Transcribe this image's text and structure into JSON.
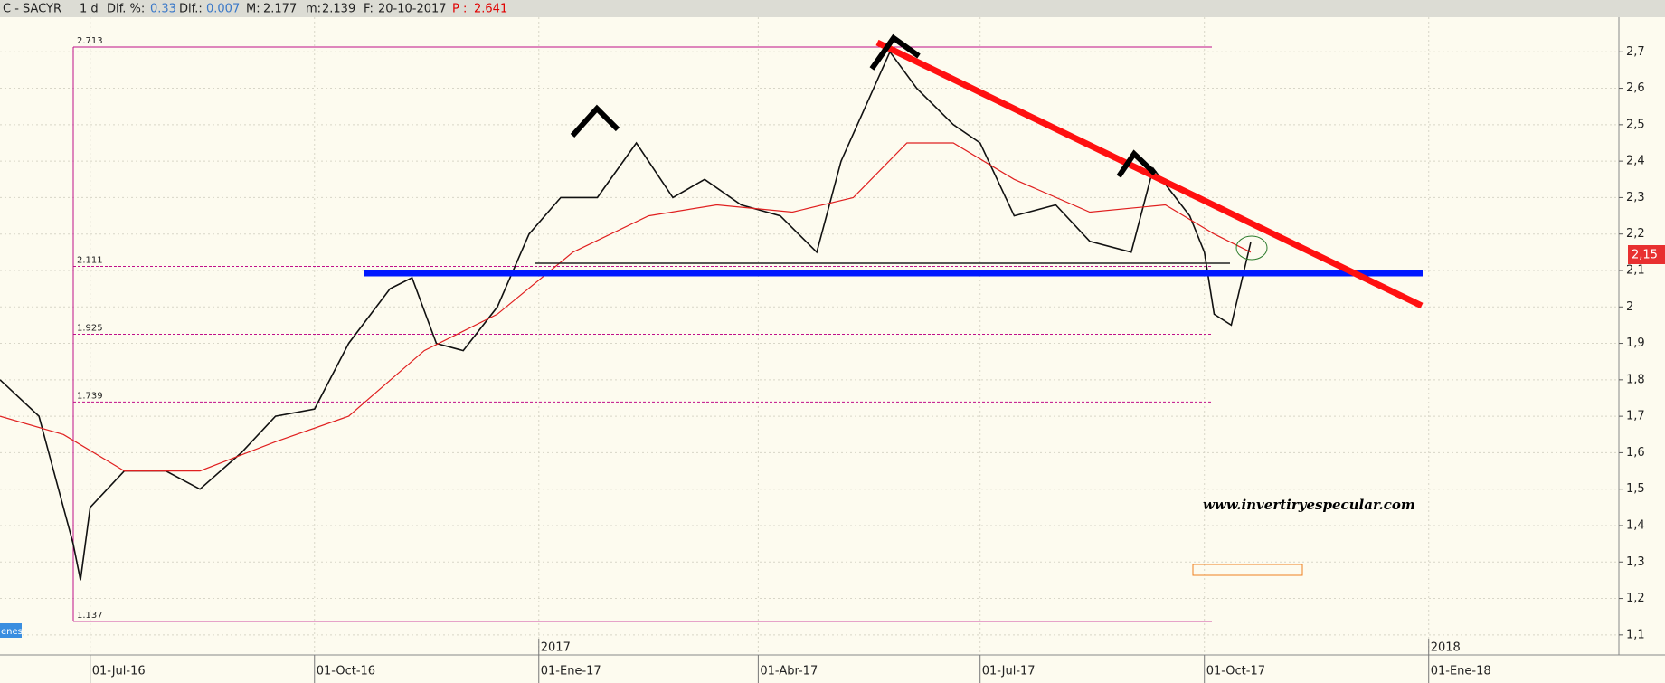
{
  "chart_data": {
    "type": "line",
    "header": {
      "symbol": "C - SACYR",
      "interval": "1 d",
      "dif_pct_label": "Dif. %:",
      "dif_pct": 0.33,
      "dif_label": "Dif.:",
      "dif": 0.007,
      "max_label": "M:",
      "max": 2.177,
      "min_label": "m:",
      "min": 2.139,
      "date_label": "F:",
      "date": "20-10-2017",
      "p_label": "P :",
      "p": 2.641
    },
    "watermark": "www.invertiryespecular.com",
    "last_price_label": "2,15",
    "corner_label": "enes",
    "xlim": [
      "2016-05-25",
      "2018-03-20"
    ],
    "xticks": [
      {
        "value": "2016-07-01",
        "label": "01-Jul-16"
      },
      {
        "value": "2016-10-01",
        "label": "01-Oct-16"
      },
      {
        "value": "2017-01-01",
        "label": "01-Ene-17"
      },
      {
        "value": "2017-04-01",
        "label": "01-Abr-17"
      },
      {
        "value": "2017-07-01",
        "label": "01-Jul-17"
      },
      {
        "value": "2017-10-01",
        "label": "01-Oct-17"
      },
      {
        "value": "2018-01-01",
        "label": "01-Ene-18"
      }
    ],
    "year_marks": [
      {
        "value": "2017-01-01",
        "label": "2017"
      },
      {
        "value": "2018-01-01",
        "label": "2018"
      }
    ],
    "ylim": [
      1.045,
      2.795
    ],
    "yticks": [
      {
        "value": 1.1,
        "label": "1,1"
      },
      {
        "value": 1.2,
        "label": "1,2"
      },
      {
        "value": 1.3,
        "label": "1,3"
      },
      {
        "value": 1.4,
        "label": "1,4"
      },
      {
        "value": 1.5,
        "label": "1,5"
      },
      {
        "value": 1.6,
        "label": "1,6"
      },
      {
        "value": 1.7,
        "label": "1,7"
      },
      {
        "value": 1.8,
        "label": "1,8"
      },
      {
        "value": 1.9,
        "label": "1,9"
      },
      {
        "value": 2,
        "label": "2"
      },
      {
        "value": 2.1,
        "label": "2,1"
      },
      {
        "value": 2.2,
        "label": "2,2"
      },
      {
        "value": 2.3,
        "label": "2,3"
      },
      {
        "value": 2.4,
        "label": "2,4"
      },
      {
        "value": 2.5,
        "label": "2,5"
      },
      {
        "value": 2.6,
        "label": "2,6"
      },
      {
        "value": 2.7,
        "label": "2,7"
      }
    ],
    "fib_levels": [
      2.713,
      2.111,
      1.925,
      1.739,
      1.137
    ],
    "series": [
      {
        "color": "#111111",
        "x": [
          "2016-05-25",
          "2016-06-10",
          "2016-06-24",
          "2016-06-27",
          "2016-07-01",
          "2016-07-15",
          "2016-08-01",
          "2016-08-15",
          "2016-09-01",
          "2016-09-15",
          "2016-10-01",
          "2016-10-15",
          "2016-11-01",
          "2016-11-10",
          "2016-11-20",
          "2016-12-01",
          "2016-12-15",
          "2016-12-28",
          "2017-01-10",
          "2017-01-25",
          "2017-02-10",
          "2017-02-25",
          "2017-03-10",
          "2017-03-25",
          "2017-04-10",
          "2017-04-25",
          "2017-05-05",
          "2017-05-15",
          "2017-05-25",
          "2017-06-05",
          "2017-06-20",
          "2017-07-01",
          "2017-07-15",
          "2017-08-01",
          "2017-08-15",
          "2017-09-01",
          "2017-09-10",
          "2017-09-25",
          "2017-10-01",
          "2017-10-05",
          "2017-10-12",
          "2017-10-20"
        ],
        "values": [
          1.8,
          1.7,
          1.35,
          1.25,
          1.45,
          1.55,
          1.55,
          1.5,
          1.6,
          1.7,
          1.72,
          1.9,
          2.05,
          2.08,
          1.9,
          1.88,
          2.0,
          2.2,
          2.3,
          2.3,
          2.45,
          2.3,
          2.35,
          2.28,
          2.25,
          2.15,
          2.4,
          2.55,
          2.7,
          2.6,
          2.5,
          2.45,
          2.25,
          2.28,
          2.18,
          2.15,
          2.38,
          2.25,
          2.15,
          1.98,
          1.95,
          2.177
        ]
      },
      {
        "color": "#e02020",
        "x": [
          "2016-05-25",
          "2016-06-20",
          "2016-07-15",
          "2016-08-15",
          "2016-09-15",
          "2016-10-15",
          "2016-11-15",
          "2016-12-15",
          "2017-01-15",
          "2017-02-15",
          "2017-03-15",
          "2017-04-15",
          "2017-05-10",
          "2017-06-01",
          "2017-06-20",
          "2017-07-15",
          "2017-08-15",
          "2017-09-15",
          "2017-10-05",
          "2017-10-20"
        ],
        "values": [
          1.7,
          1.65,
          1.55,
          1.55,
          1.63,
          1.7,
          1.88,
          1.98,
          2.15,
          2.25,
          2.28,
          2.26,
          2.3,
          2.45,
          2.45,
          2.35,
          2.26,
          2.28,
          2.2,
          2.15
        ]
      }
    ]
  }
}
